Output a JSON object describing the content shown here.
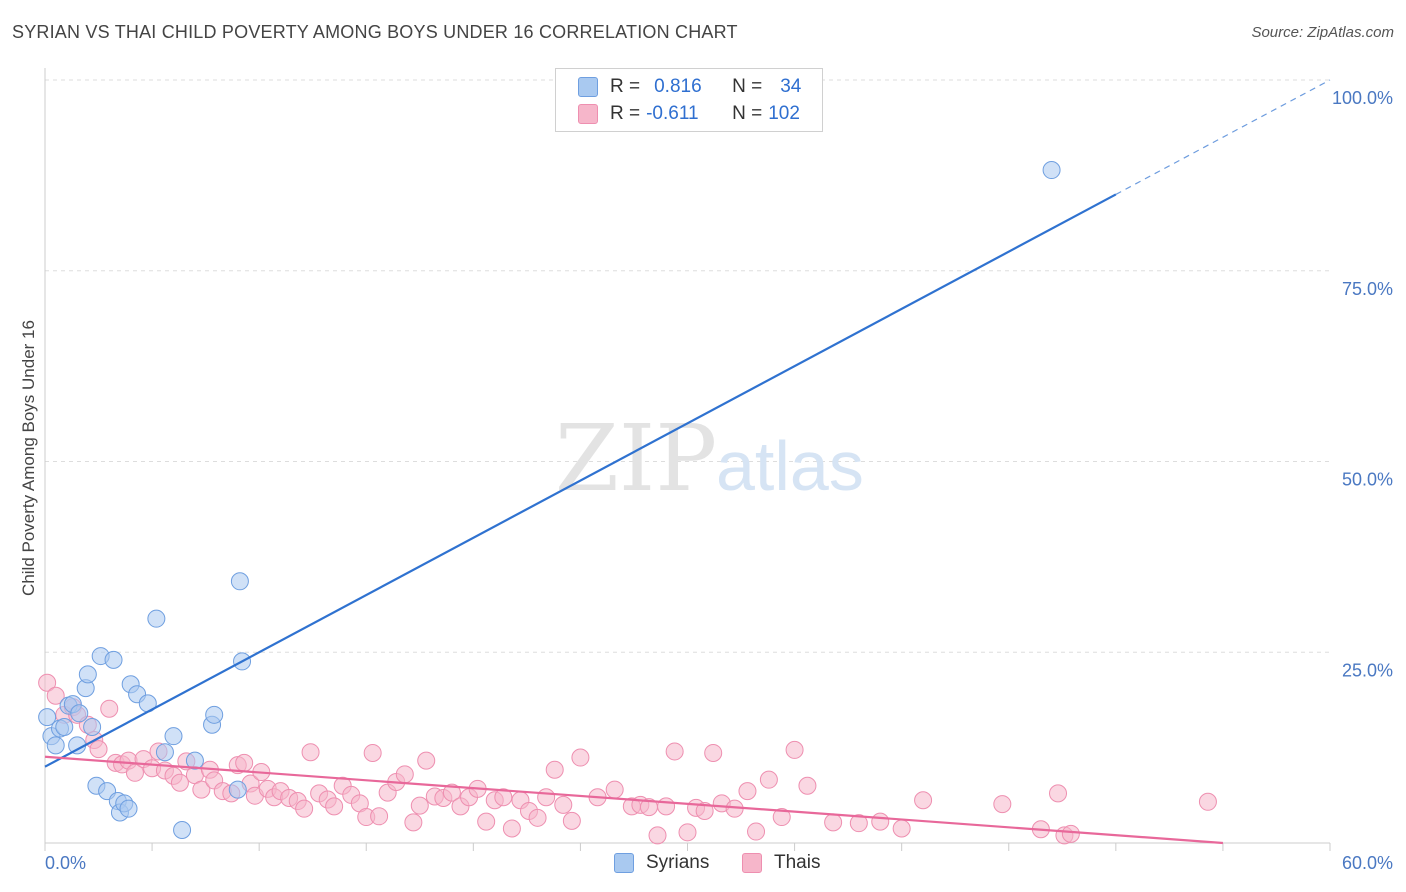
{
  "title": "SYRIAN VS THAI CHILD POVERTY AMONG BOYS UNDER 16 CORRELATION CHART",
  "source": "Source: ZipAtlas.com",
  "watermark": {
    "zip": "ZIP",
    "atlas": "atlas"
  },
  "colors": {
    "syrians_fill": "#a9c9f0",
    "syrians_stroke": "#6f9fe0",
    "syrians_line": "#2f72d0",
    "thais_fill": "#f6b6ca",
    "thais_stroke": "#ee8fb0",
    "thais_line": "#e8689a",
    "grid": "#dddddd",
    "tick_text": "#4a78c2"
  },
  "legend": {
    "rows": [
      {
        "r_label": "R =",
        "r_value": "0.816",
        "n_label": "N =",
        "n_value": "34"
      },
      {
        "r_label": "R =",
        "r_value": "-0.611",
        "n_label": "N =",
        "n_value": "102"
      }
    ]
  },
  "bottom_legend": {
    "syrians": "Syrians",
    "thais": "Thais"
  },
  "chart_data": {
    "type": "scatter",
    "title": "SYRIAN VS THAI CHILD POVERTY AMONG BOYS UNDER 16 CORRELATION CHART",
    "xlabel": "",
    "ylabel": "Child Poverty Among Boys Under 16",
    "xlim": [
      0,
      60
    ],
    "ylim": [
      0,
      100
    ],
    "x_tick_labels": [
      "0.0%",
      "60.0%"
    ],
    "y_ticks": [
      25,
      50,
      75,
      100
    ],
    "y_tick_labels": [
      "25.0%",
      "50.0%",
      "75.0%",
      "100.0%"
    ],
    "grid": true,
    "legend_position": "top-center",
    "series": [
      {
        "name": "Syrians",
        "r": 0.816,
        "n": 34,
        "trend": {
          "x0": 0,
          "y0": 10.0,
          "x1": 50.0,
          "y1": 85.0,
          "dashed_to_x": 60,
          "dashed_to_y": 100.0
        },
        "points": [
          [
            0.1,
            16.5
          ],
          [
            0.3,
            14.0
          ],
          [
            0.5,
            12.8
          ],
          [
            0.7,
            15.0
          ],
          [
            0.9,
            15.2
          ],
          [
            1.1,
            18.0
          ],
          [
            1.3,
            18.2
          ],
          [
            1.5,
            12.8
          ],
          [
            1.6,
            17.0
          ],
          [
            1.9,
            20.3
          ],
          [
            2.0,
            22.1
          ],
          [
            2.2,
            15.2
          ],
          [
            2.4,
            7.5
          ],
          [
            2.6,
            24.5
          ],
          [
            2.9,
            6.8
          ],
          [
            3.2,
            24.0
          ],
          [
            3.4,
            5.5
          ],
          [
            3.5,
            4.0
          ],
          [
            3.7,
            5.2
          ],
          [
            3.9,
            4.5
          ],
          [
            4.0,
            20.8
          ],
          [
            4.3,
            19.5
          ],
          [
            4.8,
            18.3
          ],
          [
            5.2,
            29.4
          ],
          [
            5.6,
            11.9
          ],
          [
            6.0,
            14.0
          ],
          [
            6.4,
            1.7
          ],
          [
            7.0,
            10.8
          ],
          [
            7.8,
            15.5
          ],
          [
            7.9,
            16.8
          ],
          [
            9.0,
            7.0
          ],
          [
            9.1,
            34.3
          ],
          [
            9.2,
            23.8
          ],
          [
            47.0,
            88.2
          ]
        ]
      },
      {
        "name": "Thais",
        "r": -0.611,
        "n": 102,
        "trend": {
          "x0": 0,
          "y0": 11.3,
          "x1": 55.0,
          "y1": 0.0
        },
        "points": [
          [
            0.1,
            21.0
          ],
          [
            0.5,
            19.3
          ],
          [
            0.9,
            16.8
          ],
          [
            1.3,
            17.8
          ],
          [
            1.5,
            16.8
          ],
          [
            2.0,
            15.5
          ],
          [
            2.3,
            13.5
          ],
          [
            2.5,
            12.3
          ],
          [
            3.0,
            17.6
          ],
          [
            3.3,
            10.5
          ],
          [
            3.6,
            10.3
          ],
          [
            3.9,
            10.8
          ],
          [
            4.2,
            9.2
          ],
          [
            4.6,
            11.0
          ],
          [
            5.0,
            9.8
          ],
          [
            5.3,
            12.0
          ],
          [
            5.6,
            9.5
          ],
          [
            6.0,
            8.8
          ],
          [
            6.3,
            7.9
          ],
          [
            6.6,
            10.7
          ],
          [
            7.0,
            8.9
          ],
          [
            7.3,
            7.0
          ],
          [
            7.7,
            9.6
          ],
          [
            7.9,
            8.2
          ],
          [
            8.3,
            6.8
          ],
          [
            8.7,
            6.5
          ],
          [
            9.0,
            10.2
          ],
          [
            9.3,
            10.5
          ],
          [
            9.6,
            7.8
          ],
          [
            9.8,
            6.2
          ],
          [
            10.1,
            9.3
          ],
          [
            10.4,
            7.1
          ],
          [
            10.7,
            6.0
          ],
          [
            11.0,
            6.8
          ],
          [
            11.4,
            5.9
          ],
          [
            11.8,
            5.5
          ],
          [
            12.1,
            4.5
          ],
          [
            12.4,
            11.9
          ],
          [
            12.8,
            6.5
          ],
          [
            13.2,
            5.7
          ],
          [
            13.5,
            4.8
          ],
          [
            13.9,
            7.5
          ],
          [
            14.3,
            6.3
          ],
          [
            14.7,
            5.2
          ],
          [
            15.0,
            3.4
          ],
          [
            15.3,
            11.8
          ],
          [
            15.6,
            3.5
          ],
          [
            16.0,
            6.6
          ],
          [
            16.4,
            8.0
          ],
          [
            16.8,
            9.0
          ],
          [
            17.2,
            2.7
          ],
          [
            17.5,
            4.9
          ],
          [
            17.8,
            10.8
          ],
          [
            18.2,
            6.1
          ],
          [
            18.6,
            5.9
          ],
          [
            19.0,
            6.6
          ],
          [
            19.4,
            4.8
          ],
          [
            19.8,
            6.0
          ],
          [
            20.2,
            7.1
          ],
          [
            20.6,
            2.8
          ],
          [
            21.0,
            5.6
          ],
          [
            21.4,
            6.0
          ],
          [
            21.8,
            1.9
          ],
          [
            22.2,
            5.6
          ],
          [
            22.6,
            4.2
          ],
          [
            23.0,
            3.3
          ],
          [
            23.4,
            6.0
          ],
          [
            23.8,
            9.6
          ],
          [
            24.2,
            5.0
          ],
          [
            24.6,
            2.9
          ],
          [
            25.0,
            11.2
          ],
          [
            25.8,
            6.0
          ],
          [
            26.6,
            7.0
          ],
          [
            27.4,
            4.8
          ],
          [
            27.8,
            5.0
          ],
          [
            28.2,
            4.7
          ],
          [
            28.6,
            1.0
          ],
          [
            29.0,
            4.8
          ],
          [
            29.4,
            12.0
          ],
          [
            30.0,
            1.4
          ],
          [
            30.4,
            4.6
          ],
          [
            30.8,
            4.2
          ],
          [
            31.2,
            11.8
          ],
          [
            31.6,
            5.2
          ],
          [
            32.2,
            4.5
          ],
          [
            32.8,
            6.8
          ],
          [
            33.2,
            1.5
          ],
          [
            33.8,
            8.3
          ],
          [
            34.4,
            3.4
          ],
          [
            35.0,
            12.2
          ],
          [
            35.6,
            7.5
          ],
          [
            36.8,
            2.7
          ],
          [
            38.0,
            2.6
          ],
          [
            39.0,
            2.8
          ],
          [
            40.0,
            1.9
          ],
          [
            41.0,
            5.6
          ],
          [
            44.7,
            5.1
          ],
          [
            46.5,
            1.8
          ],
          [
            47.3,
            6.5
          ],
          [
            47.6,
            1.0
          ],
          [
            47.9,
            1.2
          ],
          [
            54.3,
            5.4
          ]
        ]
      }
    ]
  }
}
